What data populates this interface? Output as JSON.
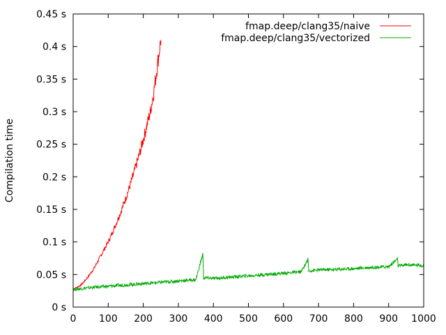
{
  "chart_data": {
    "type": "line",
    "title": "",
    "xlabel": "",
    "ylabel": "Compilation time",
    "xlim": [
      0,
      1000
    ],
    "ylim": [
      0,
      0.45
    ],
    "xticks": [
      0,
      100,
      200,
      300,
      400,
      500,
      600,
      700,
      800,
      900,
      1000
    ],
    "xtick_labels": [
      "0",
      "100",
      "200",
      "300",
      "400",
      "500",
      "600",
      "700",
      "800",
      "900",
      "1000"
    ],
    "yticks": [
      0,
      0.05,
      0.1,
      0.15,
      0.2,
      0.25,
      0.3,
      0.35,
      0.4,
      0.45
    ],
    "ytick_labels": [
      "0 s",
      "0.05 s",
      "0.1 s",
      "0.15 s",
      "0.2 s",
      "0.25 s",
      "0.3 s",
      "0.35 s",
      "0.4 s",
      "0.45 s"
    ],
    "grid": false,
    "legend_position": "top-right",
    "series": [
      {
        "name": "fmap.deep/clang35/naive",
        "color": "#ff0000",
        "x": [
          0,
          10,
          20,
          30,
          40,
          50,
          60,
          70,
          80,
          90,
          100,
          110,
          120,
          130,
          140,
          150,
          160,
          170,
          180,
          190,
          200,
          210,
          220,
          230,
          240,
          250
        ],
        "y": [
          0.028,
          0.03,
          0.033,
          0.038,
          0.045,
          0.052,
          0.06,
          0.07,
          0.08,
          0.09,
          0.1,
          0.112,
          0.125,
          0.138,
          0.152,
          0.167,
          0.183,
          0.2,
          0.218,
          0.237,
          0.257,
          0.278,
          0.3,
          0.33,
          0.37,
          0.41
        ]
      },
      {
        "name": "fmap.deep/clang35/vectorized",
        "color": "#00aa00",
        "x": [
          0,
          50,
          100,
          150,
          200,
          250,
          300,
          350,
          370,
          372,
          380,
          400,
          450,
          500,
          550,
          600,
          650,
          670,
          672,
          680,
          700,
          750,
          800,
          850,
          900,
          925,
          927,
          940,
          950,
          1000
        ],
        "y": [
          0.027,
          0.03,
          0.032,
          0.034,
          0.036,
          0.038,
          0.04,
          0.042,
          0.082,
          0.044,
          0.045,
          0.044,
          0.046,
          0.048,
          0.05,
          0.052,
          0.054,
          0.073,
          0.055,
          0.056,
          0.057,
          0.058,
          0.059,
          0.061,
          0.062,
          0.074,
          0.063,
          0.064,
          0.065,
          0.064
        ]
      }
    ]
  }
}
